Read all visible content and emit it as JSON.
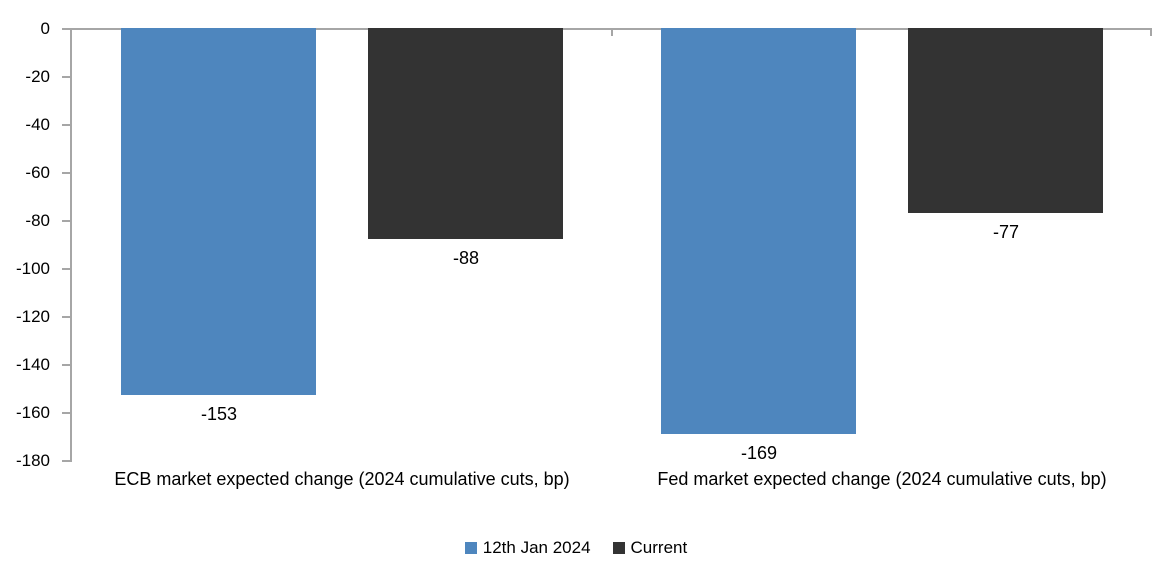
{
  "chart_data": {
    "type": "bar",
    "orientation": "vertical-negative",
    "title": "",
    "xlabel": "",
    "ylabel": "",
    "categories": [
      "ECB market expected change (2024 cumulative cuts, bp)",
      "Fed market expected change (2024 cumulative cuts, bp)"
    ],
    "series": [
      {
        "name": "12th Jan 2024",
        "color": "#4E86BE",
        "values": [
          -153,
          -169
        ]
      },
      {
        "name": "Current",
        "color": "#333333",
        "values": [
          -88,
          -77
        ]
      }
    ],
    "ylim": [
      -180,
      0
    ],
    "tick_step": 20,
    "yticks": [
      0,
      -20,
      -40,
      -60,
      -80,
      -100,
      -120,
      -140,
      -160,
      -180
    ],
    "grid": false,
    "data_labels": true,
    "legend_position": "bottom",
    "axis_color": "#A6A6A6",
    "text_color": "#000000"
  }
}
